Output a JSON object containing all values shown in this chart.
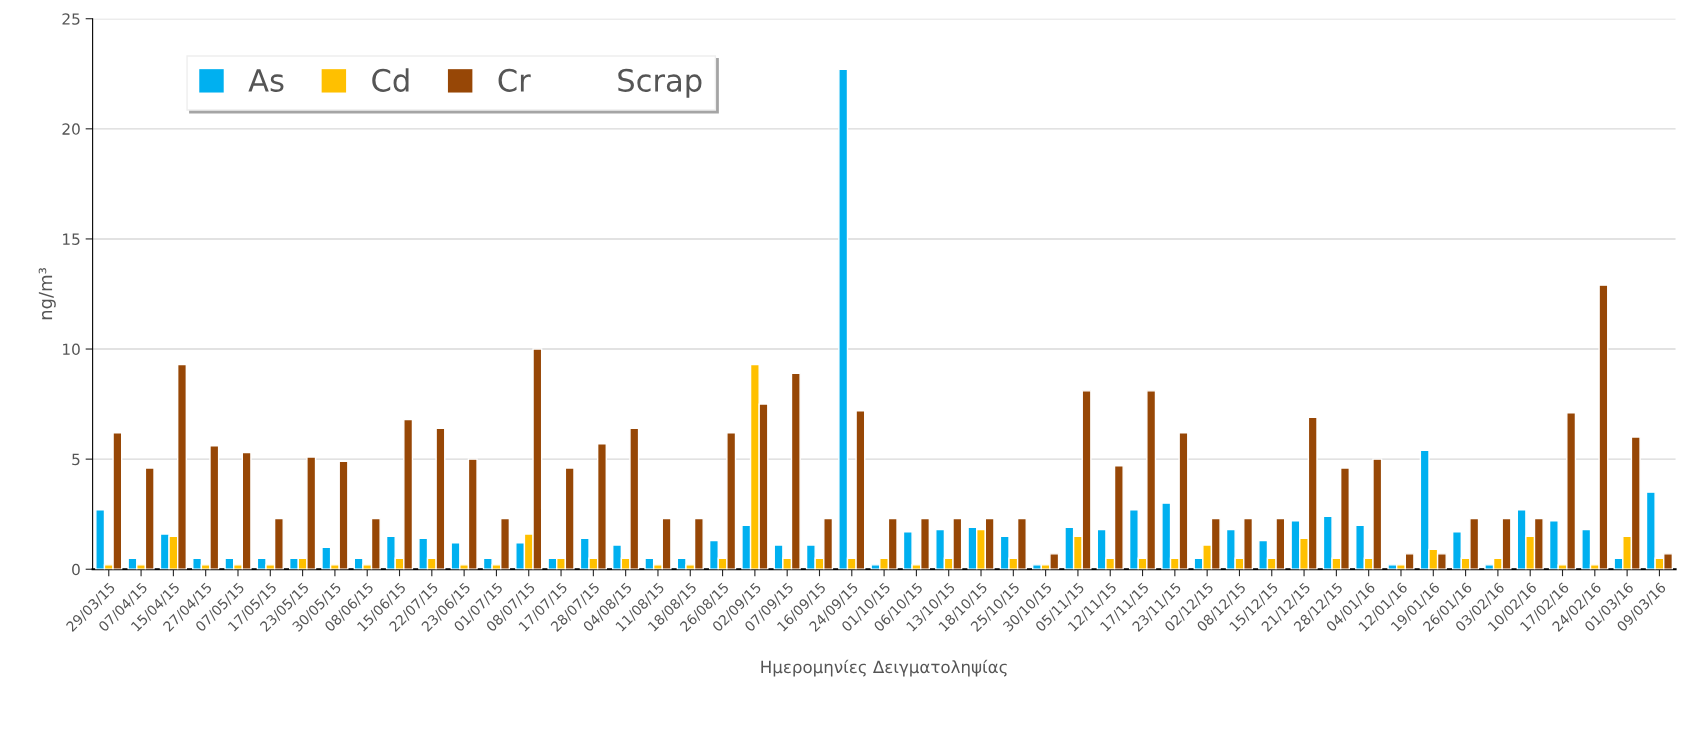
{
  "chart_data": {
    "type": "bar",
    "xlabel": "Ημερομηνίες Δειγματοληψίας",
    "ylabel": "ng/m³",
    "categories": [
      "29/03/15",
      "07/04/15",
      "15/04/15",
      "27/04/15",
      "07/05/15",
      "17/05/15",
      "23/05/15",
      "30/05/15",
      "08/06/15",
      "15/06/15",
      "22/07/15",
      "23/06/15",
      "01/07/15",
      "08/07/15",
      "17/07/15",
      "28/07/15",
      "04/08/15",
      "11/08/15",
      "18/08/15",
      "26/08/15",
      "02/09/15",
      "07/09/15",
      "16/09/15",
      "24/09/15",
      "01/10/15",
      "06/10/15",
      "13/10/15",
      "18/10/15",
      "25/10/15",
      "30/10/15",
      "05/11/15",
      "12/11/15",
      "17/11/15",
      "23/11/15",
      "02/12/15",
      "08/12/15",
      "15/12/15",
      "21/12/15",
      "28/12/15",
      "04/01/16",
      "12/01/16",
      "19/01/16",
      "26/01/16",
      "03/02/16",
      "10/02/16",
      "17/02/16",
      "24/02/16",
      "01/03/16",
      "09/03/16"
    ],
    "series": [
      {
        "name": "As",
        "color": "#00b0f0",
        "values": [
          2.7,
          0.5,
          1.6,
          0.5,
          0.5,
          0.5,
          0.5,
          1.0,
          0.5,
          1.5,
          1.4,
          1.2,
          0.5,
          1.2,
          0.5,
          1.4,
          1.1,
          0.5,
          0.5,
          1.3,
          2.0,
          1.1,
          1.1,
          22.7,
          0.2,
          1.7,
          1.8,
          1.9,
          1.5,
          0.2,
          1.9,
          1.8,
          2.7,
          3.0,
          0.5,
          1.8,
          1.3,
          2.2,
          2.4,
          2.0,
          0.2,
          5.4,
          1.7,
          0.2,
          2.7,
          2.2,
          1.8,
          0.5,
          3.5
        ]
      },
      {
        "name": "Cd",
        "color": "#ffc000",
        "values": [
          0.2,
          0.2,
          1.5,
          0.2,
          0.2,
          0.2,
          0.5,
          0.2,
          0.2,
          0.5,
          0.5,
          0.2,
          0.2,
          1.6,
          0.5,
          0.5,
          0.5,
          0.2,
          0.2,
          0.5,
          9.3,
          0.5,
          0.5,
          0.5,
          0.5,
          0.2,
          0.5,
          1.8,
          0.5,
          0.2,
          1.5,
          0.5,
          0.5,
          0.5,
          1.1,
          0.5,
          0.5,
          1.4,
          0.5,
          0.5,
          0.2,
          0.9,
          0.5,
          0.5,
          1.5,
          0.2,
          0.2,
          1.5,
          0.5
        ]
      },
      {
        "name": "Cr",
        "color": "#974706",
        "values": [
          6.2,
          4.6,
          9.3,
          5.6,
          5.3,
          2.3,
          5.1,
          4.9,
          2.3,
          6.8,
          6.4,
          5.0,
          2.3,
          10.0,
          4.6,
          5.7,
          6.4,
          2.3,
          2.3,
          6.2,
          7.5,
          8.9,
          2.3,
          7.2,
          2.3,
          2.3,
          2.3,
          2.3,
          2.3,
          0.7,
          8.1,
          4.7,
          8.1,
          6.2,
          2.3,
          2.3,
          2.3,
          6.9,
          4.6,
          5.0,
          0.7,
          0.7,
          2.3,
          2.3,
          2.3,
          7.1,
          12.9,
          6.0,
          0.7
        ]
      },
      {
        "name": "Scrap",
        "values": [
          null,
          null,
          null,
          null,
          null,
          null,
          null,
          null,
          null,
          null,
          null,
          null,
          null,
          null,
          null,
          null,
          null,
          null,
          null,
          null,
          null,
          null,
          null,
          null,
          null,
          null,
          null,
          null,
          null,
          null,
          null,
          null,
          null,
          null,
          null,
          null,
          null,
          null,
          null,
          null,
          null,
          null,
          null,
          null,
          null,
          null,
          null,
          null,
          null
        ]
      }
    ],
    "ylim": [
      0,
      25
    ],
    "yticks": [
      0,
      5,
      10,
      15,
      20,
      25
    ],
    "grid": "y",
    "legend": "top left"
  }
}
